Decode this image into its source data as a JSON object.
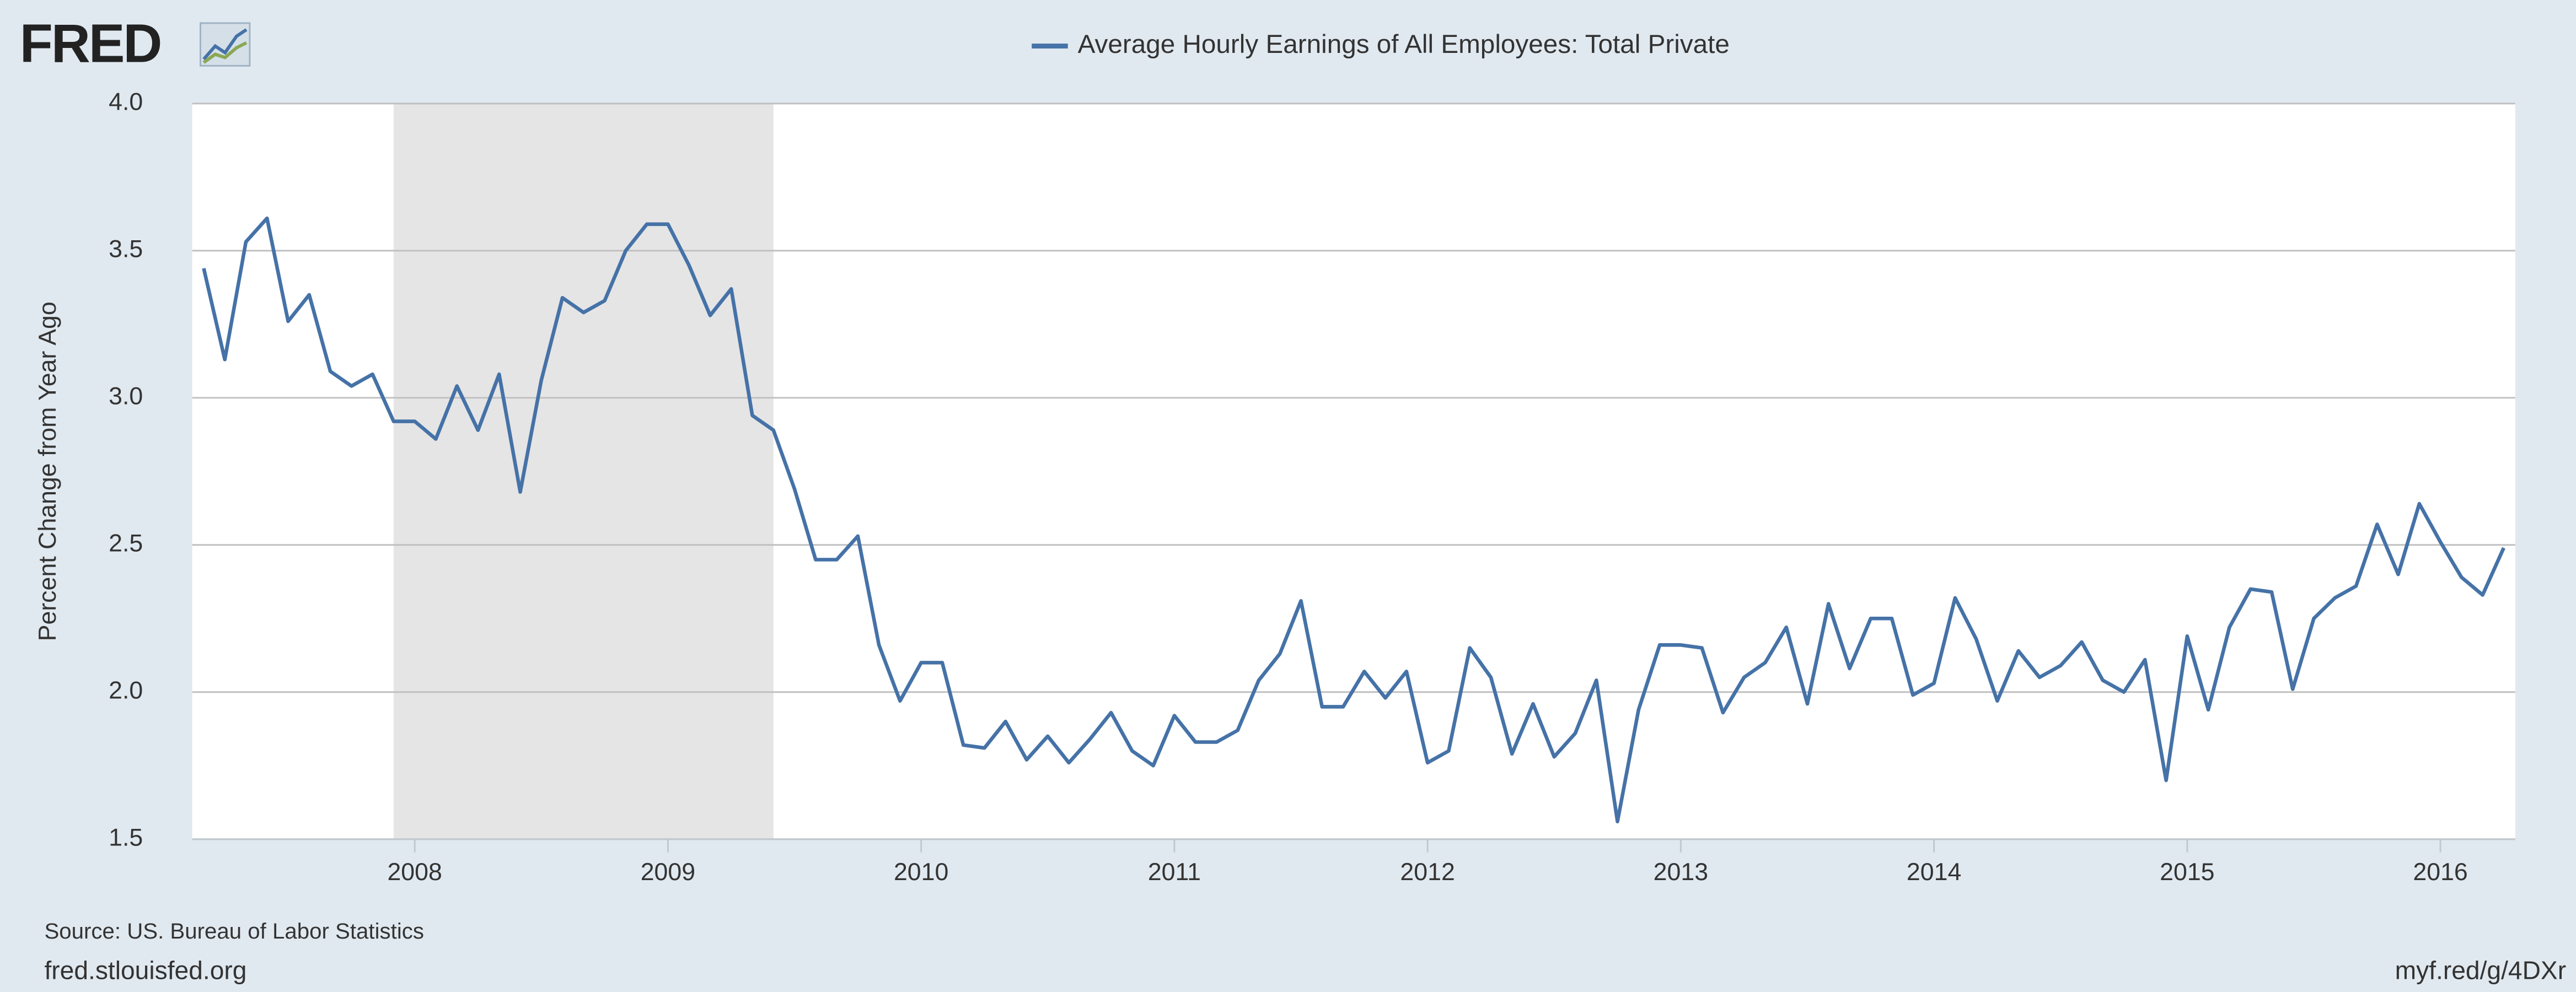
{
  "logo": "FRED",
  "chart_data": {
    "type": "line",
    "ylabel": "Percent Change from Year Ago",
    "source": "Source: US. Bureau of Labor Statistics",
    "site": "fred.stlouisfed.org",
    "short_link": "myf.red/g/4DXr",
    "x": [
      "2007-03",
      "2007-04",
      "2007-05",
      "2007-06",
      "2007-07",
      "2007-08",
      "2007-09",
      "2007-10",
      "2007-11",
      "2007-12",
      "2008-01",
      "2008-02",
      "2008-03",
      "2008-04",
      "2008-05",
      "2008-06",
      "2008-07",
      "2008-08",
      "2008-09",
      "2008-10",
      "2008-11",
      "2008-12",
      "2009-01",
      "2009-02",
      "2009-03",
      "2009-04",
      "2009-05",
      "2009-06",
      "2009-07",
      "2009-08",
      "2009-09",
      "2009-10",
      "2009-11",
      "2009-12",
      "2010-01",
      "2010-02",
      "2010-03",
      "2010-04",
      "2010-05",
      "2010-06",
      "2010-07",
      "2010-08",
      "2010-09",
      "2010-10",
      "2010-11",
      "2010-12",
      "2011-01",
      "2011-02",
      "2011-03",
      "2011-04",
      "2011-05",
      "2011-06",
      "2011-07",
      "2011-08",
      "2011-09",
      "2011-10",
      "2011-11",
      "2011-12",
      "2012-01",
      "2012-02",
      "2012-03",
      "2012-04",
      "2012-05",
      "2012-06",
      "2012-07",
      "2012-08",
      "2012-09",
      "2012-10",
      "2012-11",
      "2012-12",
      "2013-01",
      "2013-02",
      "2013-03",
      "2013-04",
      "2013-05",
      "2013-06",
      "2013-07",
      "2013-08",
      "2013-09",
      "2013-10",
      "2013-11",
      "2013-12",
      "2014-01",
      "2014-02",
      "2014-03",
      "2014-04",
      "2014-05",
      "2014-06",
      "2014-07",
      "2014-08",
      "2014-09",
      "2014-10",
      "2014-11",
      "2014-12",
      "2015-01",
      "2015-02",
      "2015-03",
      "2015-04",
      "2015-05",
      "2015-06",
      "2015-07",
      "2015-08",
      "2015-09",
      "2015-10",
      "2015-11",
      "2015-12",
      "2016-01",
      "2016-02",
      "2016-03",
      "2016-04"
    ],
    "series": [
      {
        "name": "Average Hourly Earnings of All Employees: Total Private",
        "color": "#4572a7",
        "values": [
          3.44,
          3.13,
          3.53,
          3.61,
          3.26,
          3.35,
          3.09,
          3.04,
          3.08,
          2.92,
          2.92,
          2.86,
          3.04,
          2.89,
          3.08,
          2.68,
          3.06,
          3.34,
          3.29,
          3.33,
          3.5,
          3.59,
          3.59,
          3.45,
          3.28,
          3.37,
          2.94,
          2.89,
          2.69,
          2.45,
          2.45,
          2.53,
          2.16,
          1.97,
          2.1,
          2.1,
          1.82,
          1.81,
          1.9,
          1.77,
          1.85,
          1.76,
          1.84,
          1.93,
          1.8,
          1.75,
          1.92,
          1.83,
          1.83,
          1.87,
          2.04,
          2.13,
          2.31,
          1.95,
          1.95,
          2.07,
          1.98,
          2.07,
          1.76,
          1.8,
          2.15,
          2.05,
          1.79,
          1.96,
          1.78,
          1.86,
          2.04,
          1.56,
          1.94,
          2.16,
          2.16,
          2.15,
          1.93,
          2.05,
          2.1,
          2.22,
          1.96,
          2.3,
          2.08,
          2.25,
          2.25,
          1.99,
          2.03,
          2.32,
          2.18,
          1.97,
          2.14,
          2.05,
          2.09,
          2.17,
          2.04,
          2.0,
          2.11,
          1.7,
          2.19,
          1.94,
          2.22,
          2.35,
          2.34,
          2.01,
          2.25,
          2.32,
          2.36,
          2.57,
          2.4,
          2.64,
          2.51,
          2.39,
          2.33,
          2.49
        ]
      }
    ],
    "recessions": [
      [
        "2007-12",
        "2009-06"
      ]
    ],
    "xticks": [
      "2008",
      "2009",
      "2010",
      "2011",
      "2012",
      "2013",
      "2014",
      "2015",
      "2016"
    ],
    "ylim": [
      1.5,
      4.0
    ],
    "yticks": [
      {
        "value": 1.5,
        "label": "1.5"
      },
      {
        "value": 2.0,
        "label": "2.0"
      },
      {
        "value": 2.5,
        "label": "2.5"
      },
      {
        "value": 3.0,
        "label": "3.0"
      },
      {
        "value": 3.5,
        "label": "3.5"
      },
      {
        "value": 4.0,
        "label": "4.0"
      }
    ],
    "grid": true
  }
}
